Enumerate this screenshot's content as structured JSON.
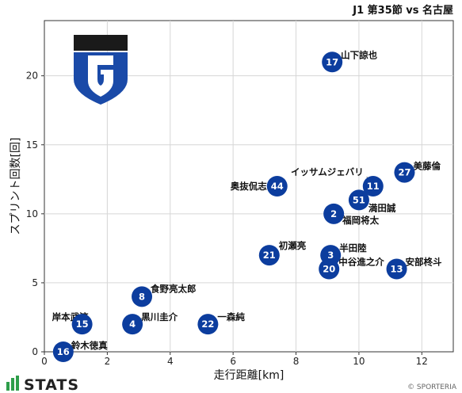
{
  "chart_data": {
    "type": "scatter",
    "title": "J1 第35節 vs 名古屋",
    "xlabel": "走行距離[km]",
    "ylabel": "スプリント回数[回]",
    "xlim": [
      0,
      13
    ],
    "ylim": [
      0,
      24
    ],
    "xticks": [
      "0",
      "2",
      "4",
      "6",
      "8",
      "10",
      "12"
    ],
    "yticks": [
      "0",
      "5",
      "10",
      "15",
      "20"
    ],
    "grid": true,
    "marker_color": "#0c3d9e",
    "points": [
      {
        "number": "17",
        "name": "山下諒也",
        "x": 9.15,
        "y": 21
      },
      {
        "number": "27",
        "name": "美藤倫",
        "x": 11.45,
        "y": 13
      },
      {
        "number": "11",
        "name": "イッサムジェバリ",
        "x": 10.45,
        "y": 12
      },
      {
        "number": "51",
        "name": "満田誠",
        "x": 10.0,
        "y": 11
      },
      {
        "number": "44",
        "name": "奥抜侃志",
        "x": 7.4,
        "y": 12
      },
      {
        "number": "2",
        "name": "福岡将太",
        "x": 9.2,
        "y": 10
      },
      {
        "number": "21",
        "name": "初瀬亮",
        "x": 7.15,
        "y": 7
      },
      {
        "number": "3",
        "name": "半田陸",
        "x": 9.1,
        "y": 7
      },
      {
        "number": "20",
        "name": "中谷進之介",
        "x": 9.05,
        "y": 6
      },
      {
        "number": "13",
        "name": "安部柊斗",
        "x": 11.2,
        "y": 6
      },
      {
        "number": "8",
        "name": "食野亮太郎",
        "x": 3.1,
        "y": 4
      },
      {
        "number": "15",
        "name": "岸本武流",
        "x": 1.2,
        "y": 2
      },
      {
        "number": "4",
        "name": "黒川圭介",
        "x": 2.8,
        "y": 2
      },
      {
        "number": "22",
        "name": "一森純",
        "x": 5.2,
        "y": 2
      },
      {
        "number": "16",
        "name": "鈴木徳真",
        "x": 0.6,
        "y": 0
      }
    ]
  },
  "branding": {
    "logo_name": "gamba-osaka-crest",
    "logo_colors": {
      "blue": "#1a4aa8",
      "black": "#1a1a1a"
    },
    "stats_logo_text": "STATS",
    "credit": "© SPORTERIA"
  }
}
